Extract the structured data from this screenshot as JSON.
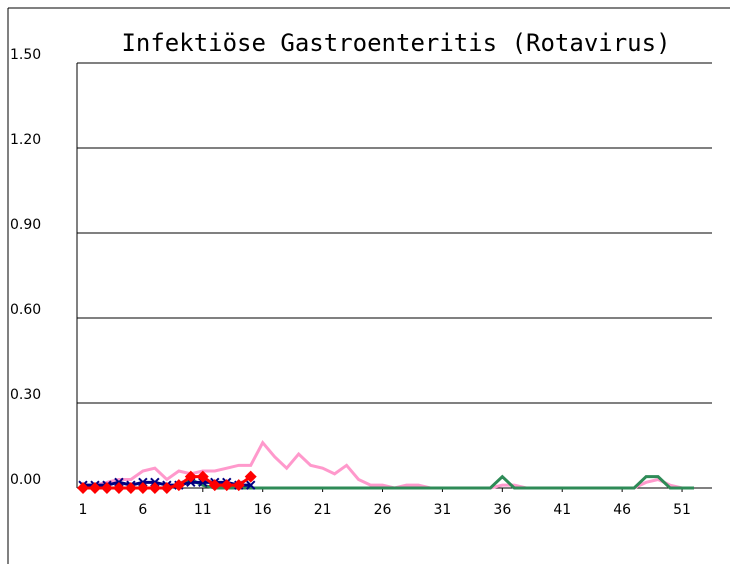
{
  "chart_data": {
    "type": "line",
    "title": "Infektiöse Gastroenteritis (Rotavirus)",
    "xlim": [
      0.5,
      53.5
    ],
    "xticks": [
      1,
      6,
      11,
      16,
      21,
      26,
      31,
      36,
      41,
      46,
      51
    ],
    "ylim": [
      0,
      1.5
    ],
    "yticks": [
      {
        "value": 0,
        "label": "0.00"
      },
      {
        "value": 0.3,
        "label": "0.30"
      },
      {
        "value": 0.6,
        "label": "0.60"
      },
      {
        "value": 0.9,
        "label": "0.90"
      },
      {
        "value": 1.2,
        "label": "1.20"
      },
      {
        "value": 1.5,
        "label": "1.50"
      }
    ],
    "grid": true,
    "series": [
      {
        "color": "#ff99cc",
        "marker": "none",
        "x": [
          1,
          2,
          3,
          4,
          5,
          6,
          7,
          8,
          9,
          10,
          11,
          12,
          13,
          14,
          15,
          16,
          17,
          18,
          19,
          20,
          21,
          22,
          23,
          24,
          25,
          26,
          27,
          28,
          29,
          30,
          31,
          32,
          33,
          34,
          35,
          36,
          37,
          38,
          39,
          40,
          41,
          42,
          43,
          44,
          45,
          46,
          47,
          48,
          49,
          50,
          51,
          52
        ],
        "values": [
          0.01,
          0.01,
          0.02,
          0.03,
          0.03,
          0.06,
          0.07,
          0.03,
          0.06,
          0.05,
          0.06,
          0.06,
          0.07,
          0.08,
          0.08,
          0.16,
          0.11,
          0.07,
          0.12,
          0.08,
          0.07,
          0.05,
          0.08,
          0.03,
          0.01,
          0.01,
          0,
          0.01,
          0.01,
          0,
          0,
          0,
          0,
          0,
          0,
          0.01,
          0.01,
          0,
          0,
          0,
          0,
          0,
          0,
          0,
          0,
          0,
          0,
          0.02,
          0.03,
          0.01,
          0,
          0
        ]
      },
      {
        "color": "#2e8b57",
        "marker": "none",
        "x": [
          9,
          10,
          11,
          12,
          13,
          14,
          15,
          16,
          17,
          18,
          19,
          20,
          21,
          22,
          23,
          24,
          25,
          26,
          27,
          28,
          29,
          30,
          31,
          32,
          33,
          34,
          35,
          36,
          37,
          38,
          39,
          40,
          41,
          42,
          43,
          44,
          45,
          46,
          47,
          48,
          49,
          50,
          51,
          52
        ],
        "values": [
          0.01,
          0.03,
          0.01,
          0,
          0,
          0,
          0,
          0,
          0,
          0,
          0,
          0,
          0,
          0,
          0,
          0,
          0,
          0,
          0,
          0,
          0,
          0,
          0,
          0,
          0,
          0,
          0,
          0.04,
          0,
          0,
          0,
          0,
          0,
          0,
          0,
          0,
          0,
          0,
          0,
          0.04,
          0.04,
          0,
          0,
          0
        ]
      },
      {
        "color": "#000080",
        "marker": "x",
        "x": [
          1,
          2,
          3,
          4,
          5,
          6,
          7,
          8,
          9,
          10,
          11,
          12,
          13,
          14,
          15
        ],
        "values": [
          0.01,
          0.01,
          0.01,
          0.02,
          0.01,
          0.02,
          0.02,
          0.01,
          0.01,
          0.02,
          0.02,
          0.02,
          0.02,
          0.01,
          0.01
        ]
      },
      {
        "color": "#ff0000",
        "marker": "diamond",
        "x": [
          1,
          2,
          3,
          4,
          5,
          6,
          7,
          8,
          9,
          10,
          11,
          12,
          13,
          14,
          15
        ],
        "values": [
          0,
          0,
          0,
          0,
          0,
          0,
          0,
          0,
          0.01,
          0.04,
          0.04,
          0.01,
          0.01,
          0.01,
          0.04
        ]
      }
    ]
  }
}
